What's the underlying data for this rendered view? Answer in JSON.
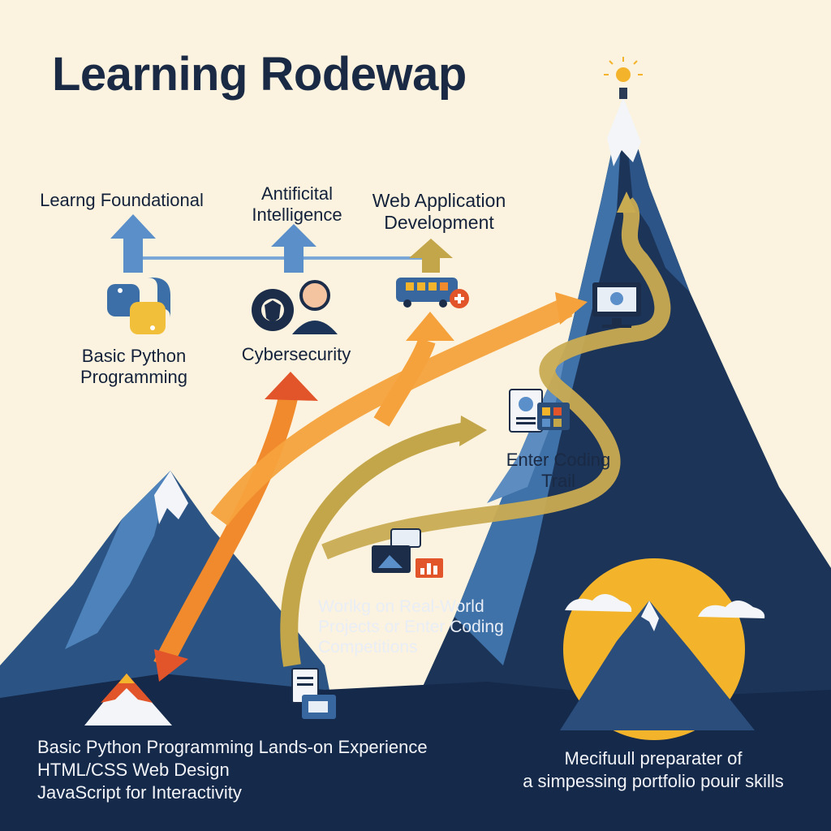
{
  "title": "Learning Rodewap",
  "top_labels": {
    "foundational": "Learng Foundational",
    "ai": "Antificital Intelligence",
    "web": "Web Application Development"
  },
  "mid_labels": {
    "python": "Basic Python Programming",
    "cyber": "Cybersecurity"
  },
  "mountain_labels": {
    "trail": "Enter Coding Trail",
    "projects": "Worlkg on Real-World Projects or Enter Coding Competitions"
  },
  "bottom_left": {
    "line1": "Basic Python  Programming Lands-on Experience",
    "line2": "HTML/CSS Web Design",
    "line3": "JavaScript for Interactivity"
  },
  "bottom_right": {
    "line1": "Mecifuull preparater of",
    "line2": "a simpessing portfolio pouir skills"
  },
  "icons": [
    "python-logo-icon",
    "gear-shield-icon",
    "person-icon",
    "bus-icon",
    "monitor-icon",
    "certificate-icon",
    "dashboard-icon",
    "chart-icon",
    "document-icon",
    "summit-sun-icon",
    "peak-icon"
  ],
  "colors": {
    "background": "#fbf3df",
    "mountain_dark": "#1c3458",
    "mountain_mid": "#3b6a9e",
    "arrow_blue": "#5b8fc9",
    "arrow_orange": "#f08a2c",
    "arrow_red": "#e2552a",
    "arrow_olive": "#c4a64a",
    "sun": "#f3b42b"
  }
}
